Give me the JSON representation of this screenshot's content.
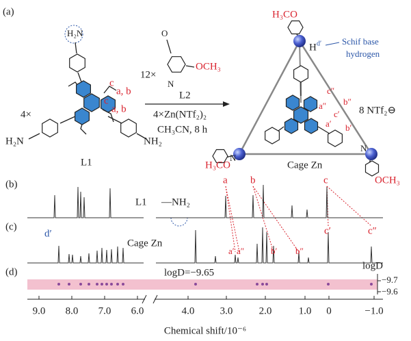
{
  "panel_a": {
    "label": "(a)",
    "l1": {
      "multiplier": "4×",
      "amine_top": "H₂N",
      "amine_left": "H₂N",
      "amine_right": "NH₂",
      "name": "L1",
      "site_labels": [
        "c",
        "a, b",
        "c",
        "a, b"
      ]
    },
    "reaction": {
      "multiplier": "12×",
      "oxygen": "O",
      "nitrogen": "N",
      "methoxy": "OCH₃",
      "ligand": "L2",
      "metal": "4×Zn(NTf₂)₂",
      "conditions": "CH₃CN, 8 h"
    },
    "cage": {
      "methoxy_top": "H₃CO",
      "imine_h": "H",
      "imine_h_label": "d′",
      "annotation": [
        "Schif base",
        "hydrogen"
      ],
      "counterion": "8 NTf₂⊖",
      "site_labels": [
        "c″",
        "b″",
        "a″",
        "c′",
        "a′",
        "b′"
      ],
      "name": "Cage Zn",
      "methoxy_left": "H₃CO",
      "methoxy_right": "OCH₃",
      "nitrogen": "N"
    }
  },
  "panel_b": {
    "label": "(b)",
    "name": "L1",
    "amine": "—NH₂",
    "peaks": [
      "a",
      "b",
      "c"
    ]
  },
  "panel_c": {
    "label": "(c)",
    "name": "Cage Zn",
    "peaks": [
      "d′",
      "a′",
      "a″",
      "b′",
      "b″",
      "c′",
      "c″"
    ]
  },
  "panel_d": {
    "label": "(d)",
    "annotation": "logD=−9.65",
    "axis_title": "logD",
    "ticks": [
      "−9.7",
      "−9.6"
    ]
  },
  "x_axis": {
    "ticks_left": [
      "9.0",
      "8.0",
      "7.0",
      "6.0"
    ],
    "ticks_right": [
      "4.0",
      "3.0",
      "2.0",
      "1.0",
      "0",
      "−1.0"
    ],
    "title": "Chemical shift/10⁻⁶"
  }
}
